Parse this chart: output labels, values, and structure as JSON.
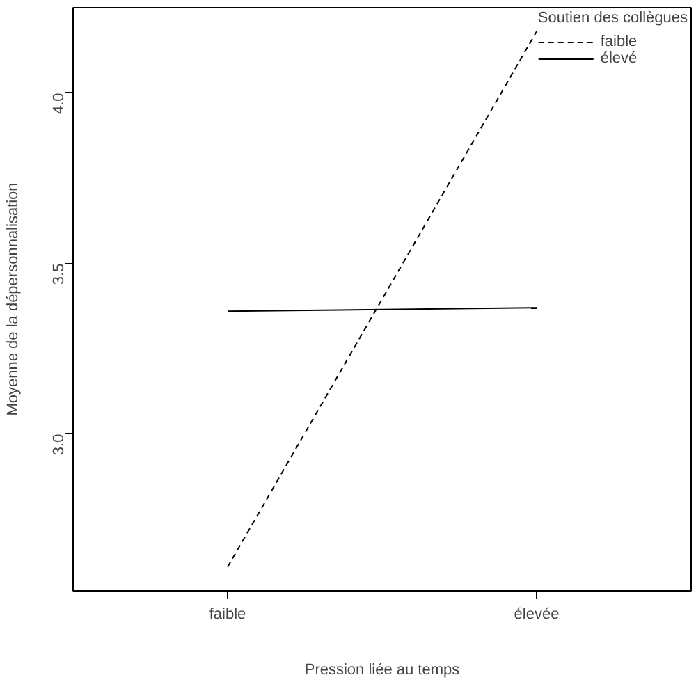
{
  "chart_data": {
    "type": "line",
    "xlabel": "Pression liée au temps",
    "ylabel": "Moyenne de la dépersonnalisation",
    "legend_title": "Soutien des collègues",
    "legend": "top right",
    "categories": [
      "faible",
      "élevée"
    ],
    "series": [
      {
        "name": "faible",
        "color": "#000000",
        "line_style": "dashed",
        "values": [
          2.61,
          4.18
        ]
      },
      {
        "name": "élevé",
        "color": "#000000",
        "line_style": "solid",
        "values": [
          3.36,
          3.37
        ]
      }
    ],
    "ylim": [
      2.54,
      4.25
    ],
    "yticks": [
      {
        "value": 3.0,
        "label": "3.0"
      },
      {
        "value": 3.5,
        "label": "3.5"
      },
      {
        "value": 4.0,
        "label": "4.0"
      }
    ]
  }
}
